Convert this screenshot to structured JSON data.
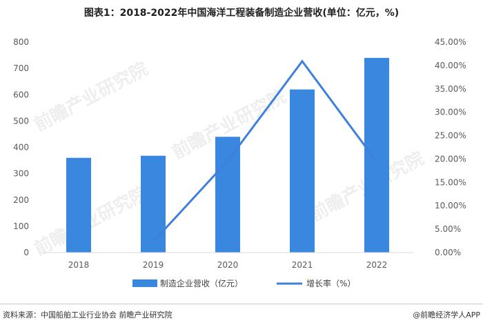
{
  "title": "图表1：2018-2022年中国海洋工程装备制造企业营收(单位：亿元，%)",
  "watermark": "前瞻产业研究院",
  "footer": {
    "source": "资料来源：中国船舶工业行业协会 前瞻产业研究院",
    "brand": "@前瞻经济学人APP"
  },
  "colors": {
    "bar": "#3a87e0",
    "line": "#3d7fdc",
    "axis": "#d9d9d9"
  },
  "chart_data": {
    "type": "bar",
    "categories": [
      "2018",
      "2019",
      "2020",
      "2021",
      "2022"
    ],
    "series": [
      {
        "name": "制造企业营收（亿元）",
        "type": "bar",
        "axis": "left",
        "values": [
          360,
          368,
          440,
          620,
          740
        ]
      },
      {
        "name": "增长率（%）",
        "type": "line",
        "axis": "right",
        "values": [
          null,
          2.3,
          19.6,
          40.9,
          19.4
        ]
      }
    ],
    "y_left": {
      "min": 0,
      "max": 800,
      "step": 100,
      "ticks": [
        "0",
        "100",
        "200",
        "300",
        "400",
        "500",
        "600",
        "700",
        "800"
      ]
    },
    "y_right": {
      "min": 0,
      "max": 45,
      "step": 5,
      "ticks": [
        "0.00%",
        "5.00%",
        "10.00%",
        "15.00%",
        "20.00%",
        "25.00%",
        "30.00%",
        "35.00%",
        "40.00%",
        "45.00%"
      ]
    },
    "legend_position": "bottom",
    "grid": false
  }
}
